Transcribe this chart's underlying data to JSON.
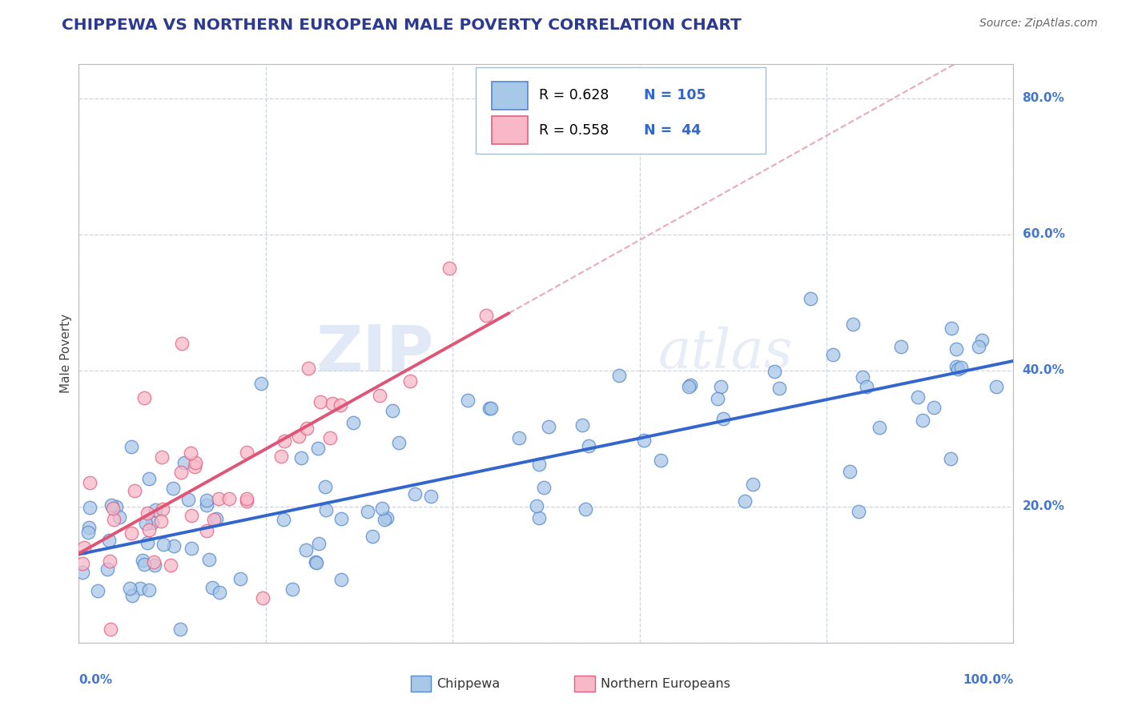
{
  "title": "CHIPPEWA VS NORTHERN EUROPEAN MALE POVERTY CORRELATION CHART",
  "source": "Source: ZipAtlas.com",
  "ylabel": "Male Poverty",
  "watermark_zip": "ZIP",
  "watermark_atlas": "atlas",
  "chippewa_color": "#a8c8e8",
  "chippewa_edge": "#5588cc",
  "ne_color": "#f8b8c8",
  "ne_edge": "#e06080",
  "chippewa_line_color": "#3366cc",
  "ne_line_color": "#e05575",
  "dashed_line_color": "#e8a0b0",
  "background_color": "#ffffff",
  "grid_color": "#c8d4e8",
  "xlim": [
    0.0,
    1.0
  ],
  "ylim": [
    0.0,
    0.85
  ],
  "title_color": "#2b3a8f",
  "source_color": "#666666",
  "axis_label_color": "#4477cc",
  "legend_text_color": "#000000",
  "legend_num_color": "#3366cc",
  "chippewa_R": "0.628",
  "chippewa_N": "105",
  "ne_R": "0.558",
  "ne_N": "44"
}
